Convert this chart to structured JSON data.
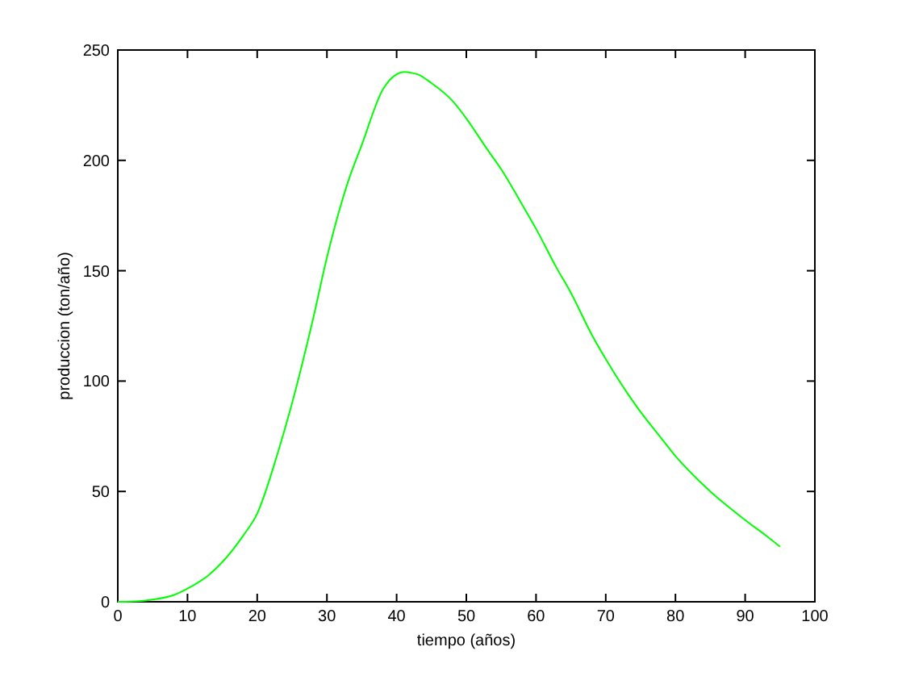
{
  "chart_data": {
    "type": "line",
    "xlabel": "tiempo (años)",
    "ylabel": "produccion (ton/año)",
    "x": [
      0,
      3,
      5,
      8,
      10,
      13,
      15,
      18,
      20,
      23,
      25,
      28,
      30,
      33,
      35,
      38,
      40,
      41,
      43,
      45,
      48,
      50,
      53,
      55,
      58,
      60,
      63,
      65,
      68,
      70,
      73,
      75,
      78,
      80,
      83,
      85,
      88,
      90,
      93,
      95
    ],
    "series": [
      {
        "color": "#00ff00",
        "values": [
          0,
          0.3,
          1,
          3,
          6,
          12,
          18,
          30,
          40,
          68,
          90,
          128,
          156,
          190,
          207,
          232,
          239,
          240,
          239,
          235,
          227,
          219,
          205,
          196,
          180,
          169,
          151,
          140,
          121,
          110,
          95,
          86,
          74,
          66,
          56,
          50,
          42,
          37,
          30,
          25
        ]
      }
    ],
    "xlim": [
      0,
      100
    ],
    "xticks": [
      0,
      10,
      20,
      30,
      40,
      50,
      60,
      70,
      80,
      90,
      100
    ],
    "ylim": [
      0,
      250
    ],
    "yticks": [
      0,
      50,
      100,
      150,
      200,
      250
    ],
    "grid": false,
    "marker": "none",
    "line_style": "solid"
  }
}
